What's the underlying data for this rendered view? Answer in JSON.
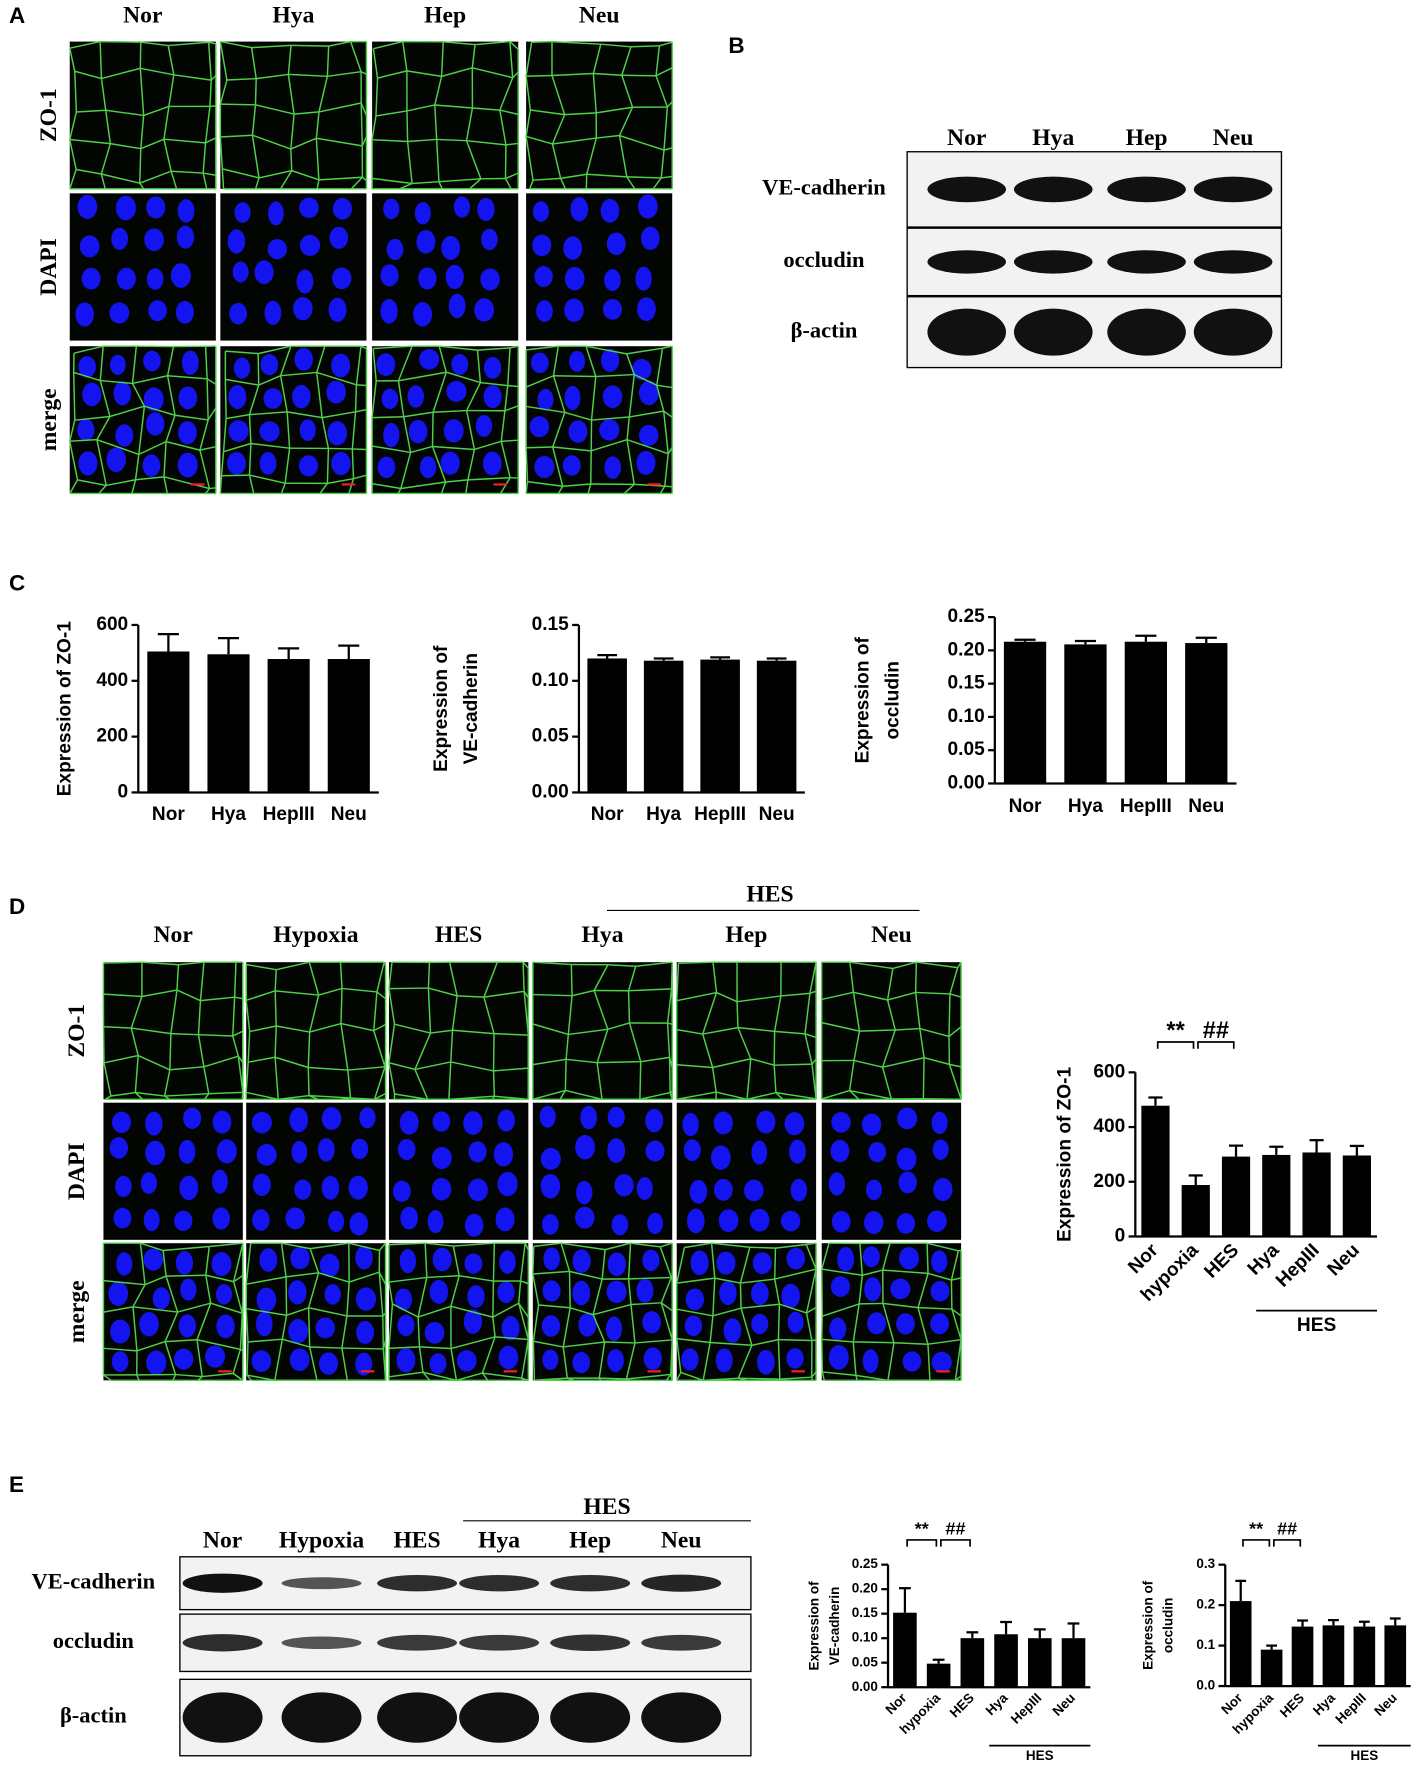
{
  "figure": {
    "A": {
      "label": "A",
      "columns": [
        "Nor",
        "Hya",
        "Hep",
        "Neu"
      ],
      "rows": [
        "ZO-1",
        "DAPI",
        "merge"
      ]
    },
    "B": {
      "label": "B",
      "lanes": [
        "Nor",
        "Hya",
        "Hep",
        "Neu"
      ],
      "rows": [
        "VE-cadherin",
        "occludin",
        "β-actin"
      ]
    },
    "C": {
      "label": "C"
    },
    "D": {
      "label": "D",
      "group": "HES",
      "columns": [
        "Nor",
        "Hypoxia",
        "HES",
        "Hya",
        "Hep",
        "Neu"
      ],
      "rows": [
        "ZO-1",
        "DAPI",
        "merge"
      ]
    },
    "E": {
      "label": "E",
      "group": "HES",
      "lanes": [
        "Nor",
        "Hypoxia",
        "HES",
        "Hya",
        "Hep",
        "Neu"
      ],
      "rows": [
        "VE-cadherin",
        "occludin",
        "β-actin"
      ]
    }
  },
  "chart_data": [
    {
      "type": "bar",
      "ylabel": [
        "Expression of ZO-1"
      ],
      "categories": [
        "Nor",
        "Hya",
        "HepIII",
        "Neu"
      ],
      "values": [
        505,
        495,
        478,
        478
      ],
      "errors": [
        62,
        58,
        38,
        48
      ],
      "color": "#000000",
      "ylim": [
        0,
        600
      ],
      "yticks": [
        0,
        200,
        400,
        600
      ]
    },
    {
      "type": "bar",
      "ylabel": [
        "Expression of",
        "VE-cadherin"
      ],
      "categories": [
        "Nor",
        "Hya",
        "HepIII",
        "Neu"
      ],
      "values": [
        0.12,
        0.118,
        0.119,
        0.118
      ],
      "errors": [
        0.003,
        0.002,
        0.002,
        0.002
      ],
      "color": "#000000",
      "ylim": [
        0,
        0.15
      ],
      "yticks": [
        {
          "value": 0,
          "label": "0.00"
        },
        0.05,
        {
          "value": 0.1,
          "label": "0.10"
        },
        0.15
      ]
    },
    {
      "type": "bar",
      "ylabel": [
        "Expression of",
        "occludin"
      ],
      "categories": [
        "Nor",
        "Hya",
        "HepIII",
        "Neu"
      ],
      "values": [
        0.213,
        0.209,
        0.213,
        0.211
      ],
      "errors": [
        0.003,
        0.005,
        0.009,
        0.008
      ],
      "color": "#000000",
      "ylim": [
        0,
        0.25
      ],
      "yticks": [
        {
          "value": 0,
          "label": "0.00"
        },
        0.05,
        {
          "value": 0.1,
          "label": "0.10"
        },
        0.15,
        {
          "value": 0.2,
          "label": "0.20"
        },
        0.25
      ]
    },
    {
      "type": "bar",
      "ylabel": [
        "Expression of ZO-1"
      ],
      "categories": [
        "Nor",
        "hypoxia",
        "HES",
        "Hya",
        "HepIII",
        "Neu"
      ],
      "values": [
        478,
        188,
        292,
        298,
        307,
        296
      ],
      "errors": [
        30,
        35,
        40,
        30,
        45,
        35
      ],
      "color": "#000000",
      "ylim": [
        0,
        600
      ],
      "yticks": [
        0,
        200,
        400,
        600
      ],
      "annotations": [
        "**",
        "##"
      ],
      "group_label": "HES"
    },
    {
      "type": "bar",
      "ylabel": [
        "Expression of",
        "VE-cadherin"
      ],
      "categories": [
        "Nor",
        "hypoxia",
        "HES",
        "Hya",
        "HepIII",
        "Neu"
      ],
      "values": [
        0.152,
        0.048,
        0.1,
        0.108,
        0.1,
        0.1
      ],
      "errors": [
        0.05,
        0.008,
        0.012,
        0.025,
        0.018,
        0.03
      ],
      "color": "#000000",
      "ylim": [
        0,
        0.25
      ],
      "yticks": [
        {
          "value": 0,
          "label": "0.00"
        },
        0.05,
        {
          "value": 0.1,
          "label": "0.10"
        },
        0.15,
        {
          "value": 0.2,
          "label": "0.20"
        },
        0.25
      ],
      "annotations": [
        "**",
        "##"
      ],
      "group_label": "HES"
    },
    {
      "type": "bar",
      "ylabel": [
        "Expression of",
        "occludin"
      ],
      "categories": [
        "Nor",
        "hypoxia",
        "HES",
        "Hya",
        "HepIII",
        "Neu"
      ],
      "values": [
        0.21,
        0.09,
        0.147,
        0.15,
        0.147,
        0.15
      ],
      "errors": [
        0.05,
        0.01,
        0.015,
        0.013,
        0.012,
        0.017
      ],
      "color": "#000000",
      "ylim": [
        0,
        0.3
      ],
      "yticks": [
        {
          "value": 0,
          "label": "0.0"
        },
        0.1,
        0.2,
        0.3
      ],
      "annotations": [
        "**",
        "##"
      ],
      "group_label": "HES"
    }
  ]
}
